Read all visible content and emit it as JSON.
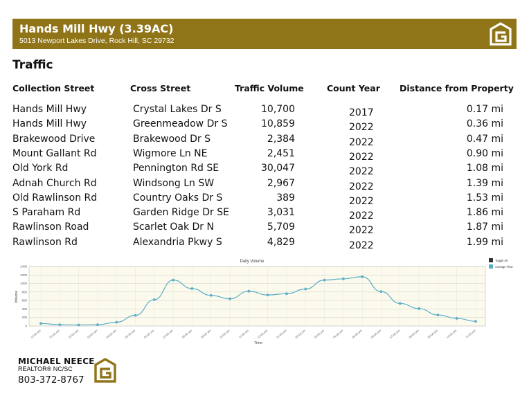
{
  "header": {
    "title": "Hands Mill Hwy (3.39AC)",
    "address": "5013 Newport Lakes Drive, Rock Hill, SC 29732",
    "brand_color": "#8f7418"
  },
  "section": {
    "title": "Traffic"
  },
  "table": {
    "headers": [
      "Collection Street",
      "Cross Street",
      "Traffic Volume",
      "Count Year",
      "Distance from Property"
    ],
    "rows": [
      [
        "Hands Mill Hwy",
        "Crystal Lakes Dr S",
        "10,700",
        "2017",
        "0.17 mi"
      ],
      [
        "Hands Mill Hwy",
        "Greenmeadow Dr S",
        "10,859",
        "2022",
        "0.36 mi"
      ],
      [
        "Brakewood Drive",
        "Brakewood Dr S",
        "2,384",
        "2022",
        "0.47 mi"
      ],
      [
        "Mount Gallant Rd",
        "Wigmore Ln NE",
        "2,451",
        "2022",
        "0.90 mi"
      ],
      [
        "Old York Rd",
        "Pennington Rd SE",
        "30,047",
        "2022",
        "1.08 mi"
      ],
      [
        "Adnah Church Rd",
        "Windsong Ln SW",
        "2,967",
        "2022",
        "1.39 mi"
      ],
      [
        "Old Rawlinson Rd",
        "Country Oaks Dr S",
        "389",
        "2022",
        "1.53 mi"
      ],
      [
        "S Paraham Rd",
        "Garden Ridge Dr SE",
        "3,031",
        "2022",
        "1.86 mi"
      ],
      [
        "Rawlinson Road",
        "Scarlet Oak Dr N",
        "5,709",
        "2022",
        "1.87 mi"
      ],
      [
        "Rawlinson Rd",
        "Alexandria Pkwy S",
        "4,829",
        "2022",
        "1.99 mi"
      ]
    ]
  },
  "chart_data": {
    "type": "line",
    "title": "Daily Volume",
    "xlabel": "Time",
    "ylabel": "Volume",
    "ylim": [
      0,
      1400
    ],
    "yticks": [
      0,
      200,
      400,
      600,
      800,
      1000,
      1200,
      1400
    ],
    "x": [
      "12:00 am",
      "01:00 am",
      "02:00 am",
      "03:00 am",
      "04:00 am",
      "05:00 am",
      "06:00 am",
      "07:00 am",
      "08:00 am",
      "09:00 am",
      "10:00 am",
      "11:00 am",
      "12:00 pm",
      "01:00 pm",
      "02:00 pm",
      "03:00 pm",
      "04:00 pm",
      "05:00 pm",
      "06:00 pm",
      "07:00 pm",
      "08:00 pm",
      "09:00 pm",
      "10:00 pm",
      "11:00 pm"
    ],
    "series": [
      {
        "name": "Average Flow",
        "color": "#5aaec8",
        "values": [
          60,
          30,
          25,
          30,
          90,
          250,
          620,
          1080,
          880,
          720,
          640,
          820,
          730,
          760,
          870,
          1080,
          1110,
          1160,
          810,
          530,
          410,
          260,
          180,
          110
        ]
      }
    ],
    "legend": [
      {
        "label": "Toggle All",
        "color": "#333333"
      },
      {
        "label": "Average Flow",
        "color": "#5aaec8"
      }
    ],
    "legend_position": "right",
    "grid": true
  },
  "agent": {
    "name": "MICHAEL NEECE",
    "title": "REALTOR® NC/SC",
    "phone": "803-372-8767"
  }
}
